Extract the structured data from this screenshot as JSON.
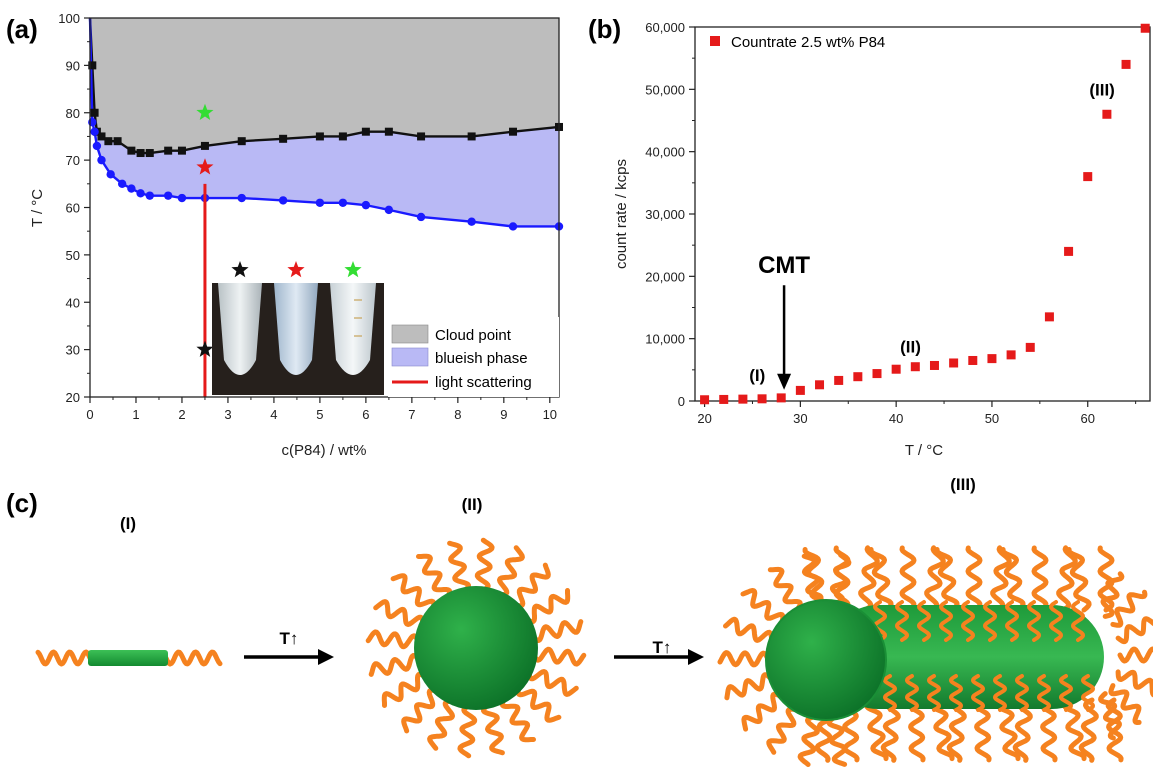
{
  "panels": {
    "a": {
      "label": "(a)"
    },
    "b": {
      "label": "(b)"
    },
    "c": {
      "label": "(c)"
    }
  },
  "chart_data": [
    {
      "id": "a",
      "type": "line",
      "xlabel": "c(P84) / wt%",
      "ylabel": "T / °C",
      "xlim": [
        0,
        10.2
      ],
      "ylim": [
        20,
        100
      ],
      "xticks": [
        0,
        1,
        2,
        3,
        4,
        5,
        6,
        7,
        8,
        9,
        10
      ],
      "yticks": [
        20,
        30,
        40,
        50,
        60,
        70,
        80,
        90,
        100
      ],
      "grid": false,
      "legend_position": "bottom-right",
      "series": [
        {
          "name": "Cloud point",
          "color": "#111111",
          "fill": "#bdbdbd",
          "marker": "square",
          "x": [
            0.0,
            0.05,
            0.1,
            0.15,
            0.25,
            0.4,
            0.6,
            0.9,
            1.1,
            1.3,
            1.7,
            2.0,
            2.5,
            3.3,
            4.2,
            5.0,
            5.5,
            6.0,
            6.5,
            7.2,
            8.3,
            9.2,
            10.2
          ],
          "y": [
            100,
            90,
            80,
            76,
            75,
            74,
            74,
            72,
            71.5,
            71.5,
            72,
            72,
            73,
            74,
            74.5,
            75,
            75,
            76,
            76,
            75,
            75,
            76,
            77
          ]
        },
        {
          "name": "blueish phase",
          "color": "#1a1aff",
          "fill": "#b9b9f5",
          "marker": "circle",
          "x": [
            0.0,
            0.05,
            0.1,
            0.15,
            0.25,
            0.45,
            0.7,
            0.9,
            1.1,
            1.3,
            1.7,
            2.0,
            2.5,
            3.3,
            4.2,
            5.0,
            5.5,
            6.0,
            6.5,
            7.2,
            8.3,
            9.2,
            10.2
          ],
          "y": [
            100,
            78,
            76,
            73,
            70,
            67,
            65,
            64,
            63,
            62.5,
            62.5,
            62,
            62,
            62,
            61.5,
            61,
            61,
            60.5,
            59.5,
            58,
            57,
            56,
            56
          ]
        },
        {
          "name": "light scattering",
          "color": "#e51a1a",
          "marker": "none",
          "x": [
            2.5,
            2.5
          ],
          "y": [
            20,
            65
          ]
        }
      ],
      "stars": [
        {
          "x": 2.5,
          "y": 80,
          "color": "#33dd33"
        },
        {
          "x": 2.5,
          "y": 68.5,
          "color": "#e51a1a"
        },
        {
          "x": 2.5,
          "y": 30,
          "color": "#111111"
        }
      ],
      "inset": {
        "stars": [
          "#111111",
          "#e51a1a",
          "#33dd33"
        ]
      }
    },
    {
      "id": "b",
      "type": "scatter",
      "xlabel": "T / °C",
      "ylabel": "count rate / kcps",
      "xlim": [
        19,
        66.5
      ],
      "ylim": [
        0,
        60000
      ],
      "xticks": [
        20,
        30,
        40,
        50,
        60
      ],
      "yticks": [
        0,
        10000,
        20000,
        30000,
        40000,
        50000,
        60000
      ],
      "ytick_labels": [
        "0",
        "10,000",
        "20,000",
        "30,000",
        "40,000",
        "50,000",
        "60,000"
      ],
      "grid": false,
      "legend_position": "top-left",
      "series": [
        {
          "name": "Countrate 2.5 wt% P84",
          "color": "#e51a1a",
          "marker": "square",
          "x": [
            20,
            22,
            24,
            26,
            28,
            30,
            32,
            34,
            36,
            38,
            40,
            42,
            44,
            46,
            48,
            50,
            52,
            54,
            56,
            58,
            60,
            62,
            64,
            66
          ],
          "y": [
            200,
            250,
            300,
            350,
            500,
            1700,
            2600,
            3300,
            3900,
            4400,
            5100,
            5500,
            5700,
            6100,
            6500,
            6800,
            7400,
            8600,
            13500,
            24000,
            36000,
            46000,
            54000,
            59800
          ]
        }
      ],
      "annotations": [
        {
          "text": "CMT",
          "x": 28.3,
          "y": 20500
        },
        {
          "text": "(I)",
          "x": 25.5,
          "y": 3200
        },
        {
          "text": "(II)",
          "x": 41.5,
          "y": 7800
        },
        {
          "text": "(III)",
          "x": 61.5,
          "y": 49000
        }
      ]
    }
  ],
  "schematic": {
    "stage_labels": [
      "(I)",
      "(II)",
      "(III)"
    ],
    "arrow_label": "T↑",
    "colors": {
      "chain": "#f5821f",
      "core_light": "#3cb54a",
      "core_dark": "#0e7a2a"
    }
  }
}
